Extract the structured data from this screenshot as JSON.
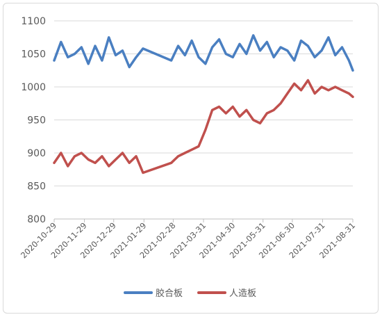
{
  "chart_data": {
    "type": "line",
    "title": "",
    "xlabel": "",
    "ylabel": "",
    "ylim": [
      800,
      1100
    ],
    "yticks": [
      800,
      850,
      900,
      950,
      1000,
      1050,
      1100
    ],
    "x_tick_labels": [
      "2020-10-29",
      "2020-11-29",
      "2020-12-29",
      "2021-01-29",
      "2021-02-28",
      "2021-03-31",
      "2021-04-30",
      "2021-05-31",
      "2021-06-30",
      "2021-07-31",
      "2021-08-31"
    ],
    "grid": "horizontal",
    "legend_position": "bottom",
    "x": [
      "2020-10-29",
      "2020-11-05",
      "2020-11-12",
      "2020-11-19",
      "2020-11-26",
      "2020-12-03",
      "2020-12-10",
      "2020-12-17",
      "2020-12-24",
      "2020-12-31",
      "2021-01-07",
      "2021-01-14",
      "2021-01-21",
      "2021-01-28",
      "2021-02-26",
      "2021-03-05",
      "2021-03-12",
      "2021-03-19",
      "2021-03-26",
      "2021-04-02",
      "2021-04-09",
      "2021-04-16",
      "2021-04-23",
      "2021-04-30",
      "2021-05-07",
      "2021-05-14",
      "2021-05-21",
      "2021-05-28",
      "2021-06-04",
      "2021-06-11",
      "2021-06-18",
      "2021-06-25",
      "2021-07-02",
      "2021-07-09",
      "2021-07-16",
      "2021-07-23",
      "2021-07-30",
      "2021-08-06",
      "2021-08-13",
      "2021-08-20",
      "2021-08-27",
      "2021-08-31"
    ],
    "series": [
      {
        "name": "胶合板",
        "color": "#4a7fc1",
        "values": [
          1040,
          1068,
          1045,
          1050,
          1060,
          1035,
          1062,
          1040,
          1075,
          1048,
          1055,
          1030,
          1045,
          1058,
          1040,
          1062,
          1048,
          1070,
          1045,
          1035,
          1060,
          1072,
          1050,
          1045,
          1065,
          1050,
          1078,
          1055,
          1068,
          1045,
          1060,
          1055,
          1040,
          1070,
          1062,
          1045,
          1055,
          1075,
          1048,
          1060,
          1040,
          1025
        ]
      },
      {
        "name": "人造板",
        "color": "#c0504d",
        "values": [
          885,
          900,
          880,
          895,
          900,
          890,
          885,
          895,
          880,
          890,
          900,
          885,
          895,
          870,
          885,
          895,
          900,
          905,
          910,
          935,
          965,
          970,
          960,
          970,
          955,
          965,
          950,
          945,
          960,
          965,
          975,
          990,
          1005,
          995,
          1010,
          990,
          1000,
          995,
          1000,
          995,
          990,
          985
        ]
      }
    ]
  }
}
